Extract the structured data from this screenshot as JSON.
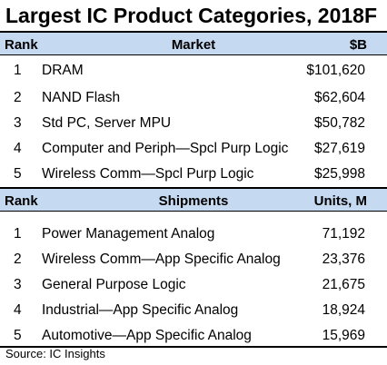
{
  "chart_data": {
    "type": "table",
    "title": "Largest IC Product Categories, 2018F",
    "sections": [
      {
        "headers": [
          "Rank",
          "Market",
          "$B"
        ],
        "rows": [
          {
            "rank": "1",
            "name": "DRAM",
            "value": "$101,620"
          },
          {
            "rank": "2",
            "name": "NAND Flash",
            "value": "$62,604"
          },
          {
            "rank": "3",
            "name": "Std PC, Server MPU",
            "value": "$50,782"
          },
          {
            "rank": "4",
            "name": "Computer and Periph—Spcl Purp Logic",
            "value": "$27,619"
          },
          {
            "rank": "5",
            "name": "Wireless Comm—Spcl Purp Logic",
            "value": "$25,998"
          }
        ]
      },
      {
        "headers": [
          "Rank",
          "Shipments",
          "Units, M"
        ],
        "rows": [
          {
            "rank": "1",
            "name": "Power Management Analog",
            "value": "71,192"
          },
          {
            "rank": "2",
            "name": "Wireless Comm—App Specific Analog",
            "value": "23,376"
          },
          {
            "rank": "3",
            "name": "General Purpose Logic",
            "value": "21,675"
          },
          {
            "rank": "4",
            "name": "Industrial—App Specific Analog",
            "value": "18,924"
          },
          {
            "rank": "5",
            "name": "Automotive—App Specific Analog",
            "value": "15,969"
          }
        ]
      }
    ],
    "source": "Source:  IC Insights",
    "header_color": "#c5d9f1"
  }
}
